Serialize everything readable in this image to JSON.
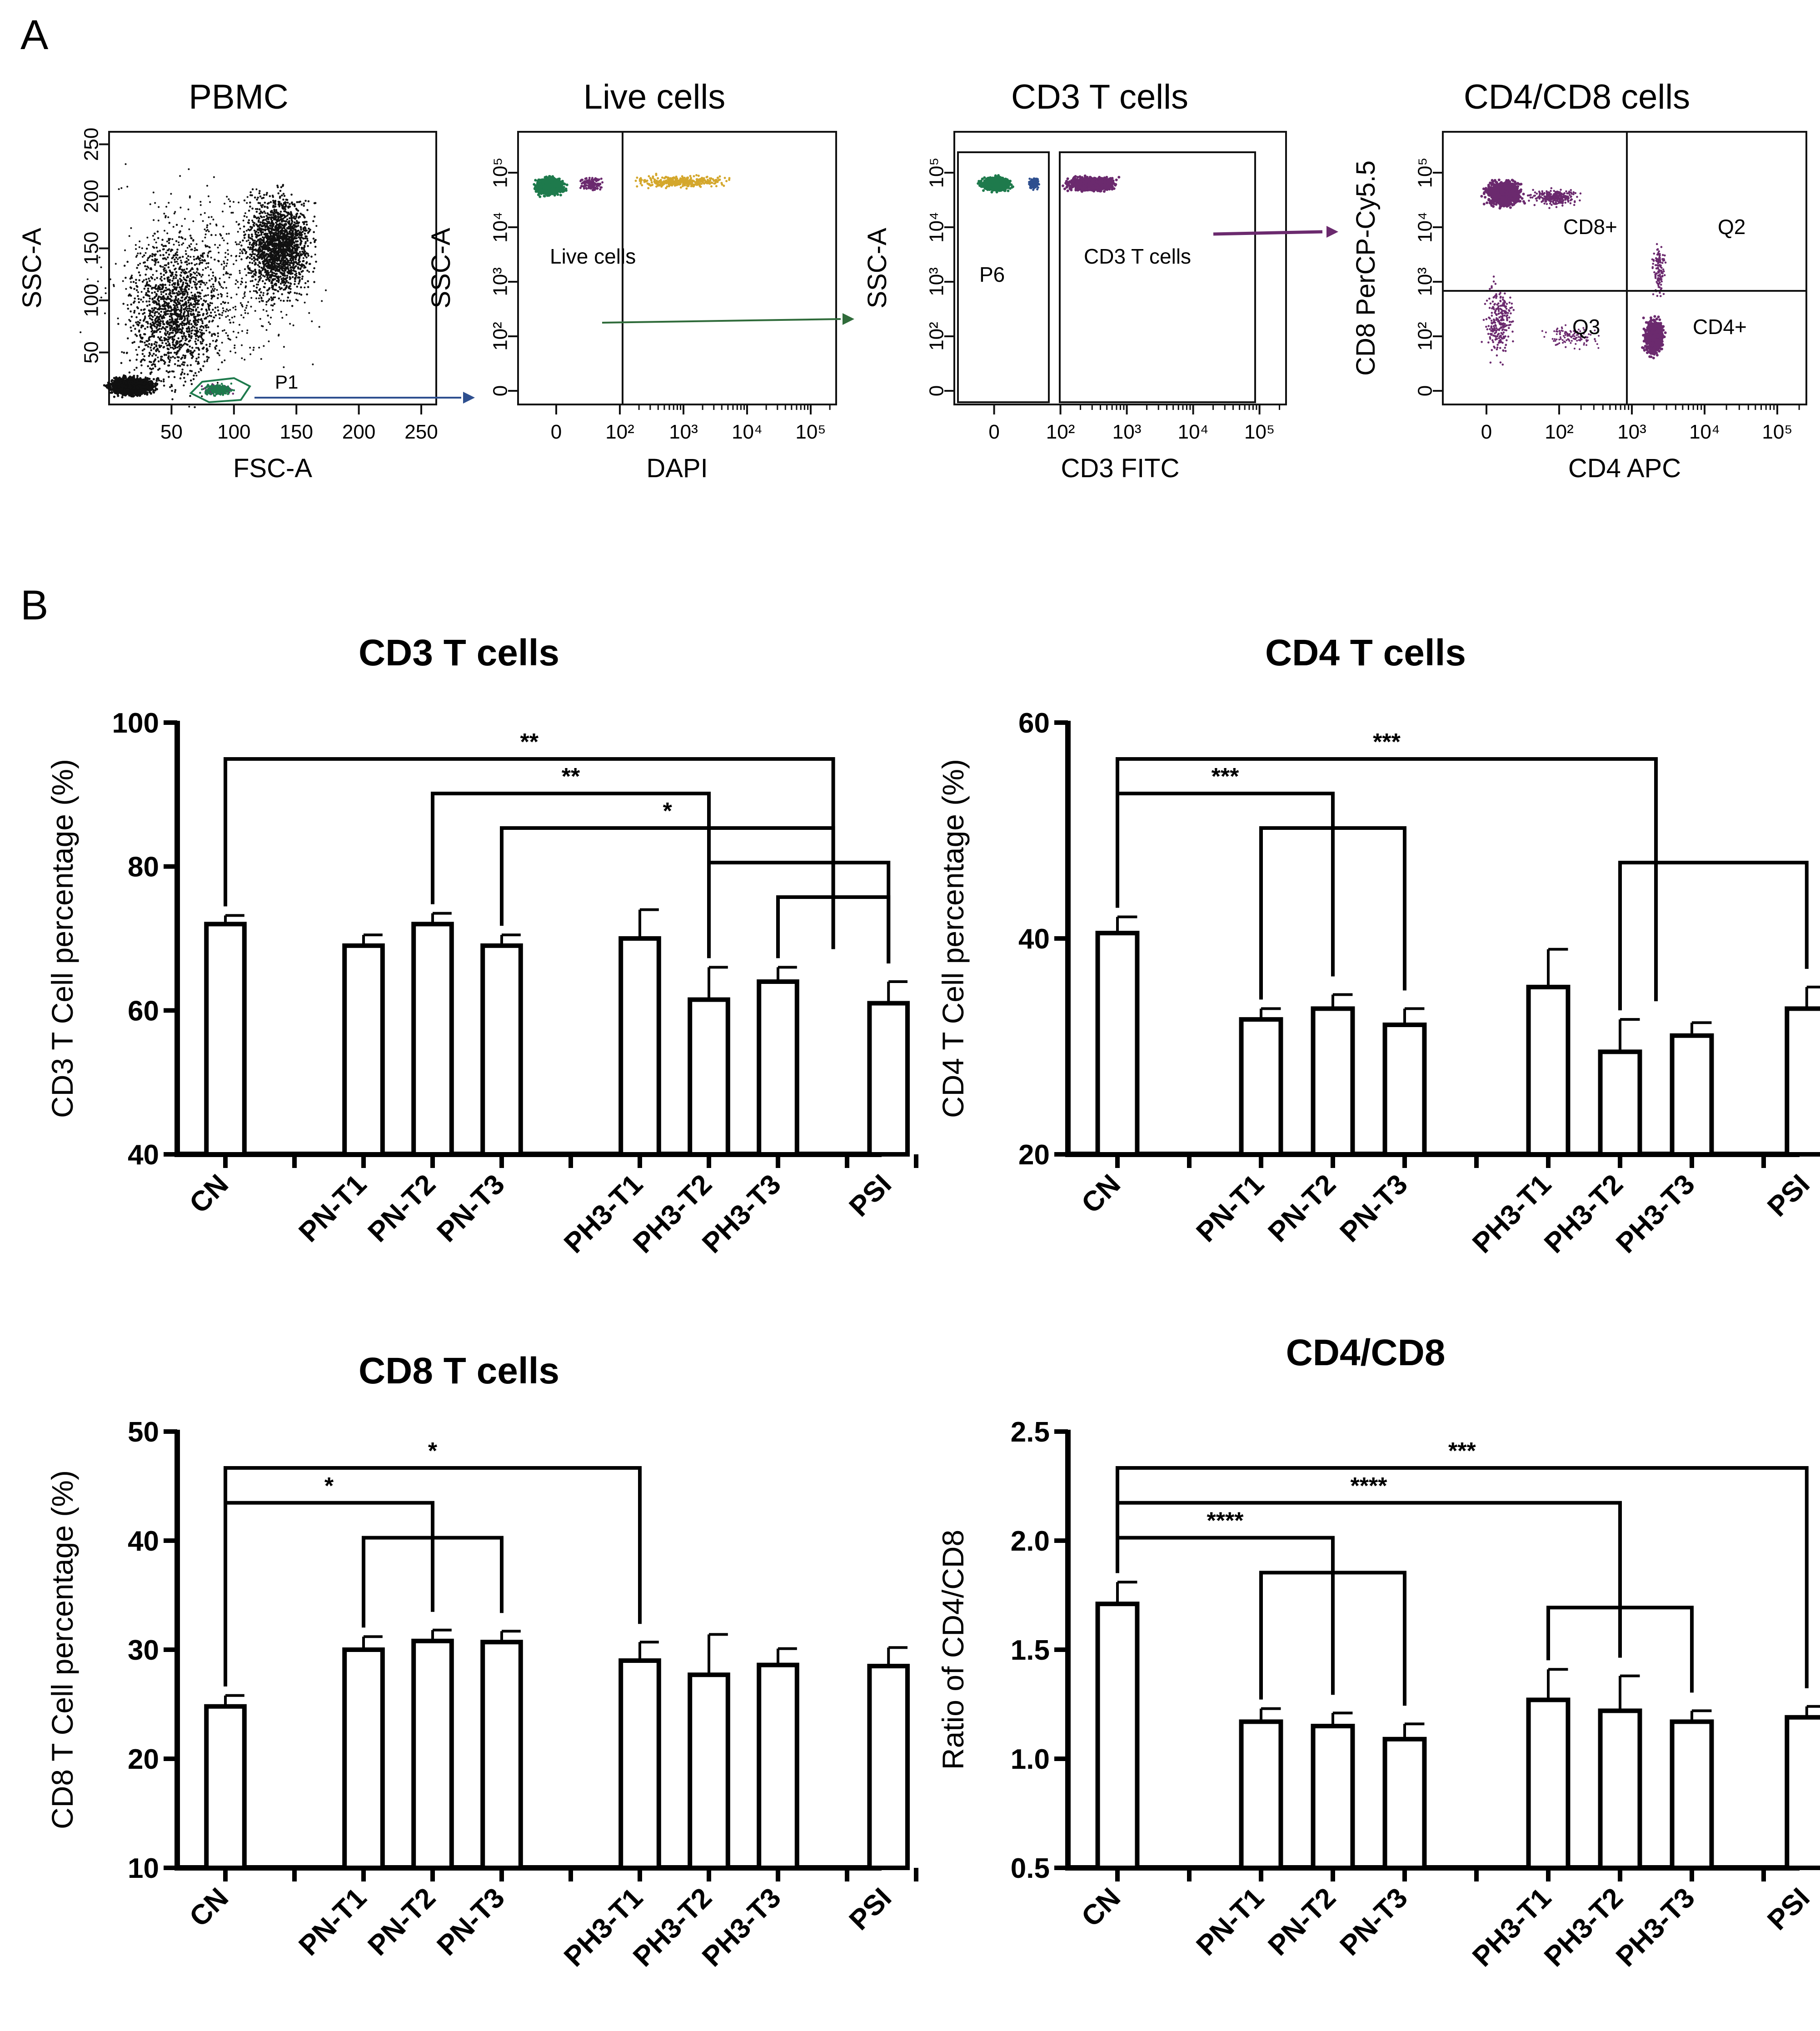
{
  "panels": {
    "a": "A",
    "b": "B"
  },
  "flow_plots": [
    {
      "title": "PBMC",
      "xlabel": "FSC-A",
      "ylabel": "SSC-A",
      "xticks": [
        "50",
        "100",
        "150",
        "200",
        "250"
      ],
      "yticks": [
        "50",
        "100",
        "150",
        "200",
        "250"
      ],
      "gates": [
        "P1"
      ]
    },
    {
      "title": "Live cells",
      "xlabel": "DAPI",
      "ylabel": "SSC-A",
      "xticks": [
        "0",
        "10²",
        "10³",
        "10⁴",
        "10⁵"
      ],
      "yticks": [
        "0",
        "10²",
        "10³",
        "10⁴",
        "10⁵"
      ],
      "gates": [
        "Live cells"
      ]
    },
    {
      "title": "CD3 T cells",
      "xlabel": "CD3 FITC",
      "ylabel": "SSC-A",
      "xticks": [
        "0",
        "10²",
        "10³",
        "10⁴",
        "10⁵"
      ],
      "yticks": [
        "0",
        "10²",
        "10³",
        "10⁴",
        "10⁵"
      ],
      "gates": [
        "P6",
        "CD3 T cells"
      ]
    },
    {
      "title": "CD4/CD8 cells",
      "xlabel": "CD4 APC",
      "ylabel": "CD8 PerCP-Cy5.5",
      "xticks": [
        "0",
        "10²",
        "10³",
        "10⁴",
        "10⁵"
      ],
      "yticks": [
        "0",
        "10²",
        "10³",
        "10⁴",
        "10⁵"
      ],
      "gates": [
        "CD8+",
        "Q2",
        "Q3",
        "CD4+"
      ]
    }
  ],
  "colors": {
    "black": "#111111",
    "green": "#1e7a4c",
    "gold": "#d4a72c",
    "purple": "#6b2a6e",
    "blue_arrow": "#2e4f8f",
    "green_arrow": "#2f6b3a",
    "purple_arrow": "#6b2a6e"
  },
  "chart_data": [
    {
      "type": "bar",
      "title": "CD3 T cells",
      "ylabel": "CD3 T Cell percentage (%)",
      "ylim": [
        40,
        100
      ],
      "yticks": [
        "40",
        "60",
        "80",
        "100"
      ],
      "categories": [
        "CN",
        "PN-T1",
        "PN-T2",
        "PN-T3",
        "PH3-T1",
        "PH3-T2",
        "PH3-T3",
        "PSI"
      ],
      "values": [
        72,
        69,
        72,
        69,
        70,
        61.5,
        64,
        61
      ],
      "errors": [
        1.2,
        1.5,
        1.5,
        1.5,
        4,
        4.5,
        2,
        3
      ],
      "significance": [
        {
          "from": 0,
          "to": 6.5,
          "label": "**"
        },
        {
          "from": 2,
          "to": 5,
          "label": "**"
        },
        {
          "from": 3,
          "to": 6.5,
          "label": "*"
        },
        {
          "from": 5,
          "to": 7,
          "label": ""
        },
        {
          "from": 6,
          "to": 7,
          "label": ""
        }
      ]
    },
    {
      "type": "bar",
      "title": "CD4 T cells",
      "ylabel": "CD4 T Cell percentage (%)",
      "ylim": [
        20,
        60
      ],
      "yticks": [
        "20",
        "40",
        "60"
      ],
      "categories": [
        "CN",
        "PN-T1",
        "PN-T2",
        "PN-T3",
        "PH3-T1",
        "PH3-T2",
        "PH3-T3",
        "PSI"
      ],
      "values": [
        40.5,
        32.5,
        33.5,
        32,
        35.5,
        29.5,
        31,
        33.5
      ],
      "errors": [
        1.5,
        1,
        1.3,
        1.5,
        3.5,
        3,
        1.2,
        2
      ],
      "significance": [
        {
          "from": 0,
          "to": 5.5,
          "label": "***"
        },
        {
          "from": 0,
          "to": 2,
          "label": "***"
        },
        {
          "from": 1,
          "to": 3,
          "label": ""
        },
        {
          "from": 5,
          "to": 7,
          "label": ""
        }
      ]
    },
    {
      "type": "bar",
      "title": "CD8 T cells",
      "ylabel": "CD8 T Cell percentage (%)",
      "ylim": [
        10,
        50
      ],
      "yticks": [
        "10",
        "20",
        "30",
        "40",
        "50"
      ],
      "categories": [
        "CN",
        "PN-T1",
        "PN-T2",
        "PN-T3",
        "PH3-T1",
        "PH3-T2",
        "PH3-T3",
        "PSI"
      ],
      "values": [
        24.8,
        30,
        30.8,
        30.7,
        29,
        27.7,
        28.6,
        28.5
      ],
      "errors": [
        1,
        1.2,
        1,
        1,
        1.7,
        3.7,
        1.5,
        1.7
      ],
      "significance": [
        {
          "from": 0,
          "to": 4,
          "label": "*"
        },
        {
          "from": 0,
          "to": 2,
          "label": "*"
        },
        {
          "from": 1,
          "to": 3,
          "label": ""
        }
      ]
    },
    {
      "type": "bar",
      "title": "CD4/CD8",
      "ylabel": "Ratio of CD4/CD8",
      "ylim": [
        0.5,
        2.5
      ],
      "yticks": [
        "0.5",
        "1.0",
        "1.5",
        "2.0",
        "2.5"
      ],
      "categories": [
        "CN",
        "PN-T1",
        "PN-T2",
        "PN-T3",
        "PH3-T1",
        "PH3-T2",
        "PH3-T3",
        "PSI"
      ],
      "values": [
        1.71,
        1.17,
        1.15,
        1.09,
        1.27,
        1.22,
        1.17,
        1.19
      ],
      "errors": [
        0.1,
        0.06,
        0.06,
        0.07,
        0.14,
        0.16,
        0.05,
        0.05
      ],
      "significance": [
        {
          "from": 0,
          "to": 7,
          "label": "***"
        },
        {
          "from": 0,
          "to": 5,
          "label": "****"
        },
        {
          "from": 0,
          "to": 2,
          "label": "****"
        },
        {
          "from": 1,
          "to": 3,
          "label": ""
        },
        {
          "from": 4,
          "to": 6,
          "label": ""
        }
      ]
    }
  ]
}
